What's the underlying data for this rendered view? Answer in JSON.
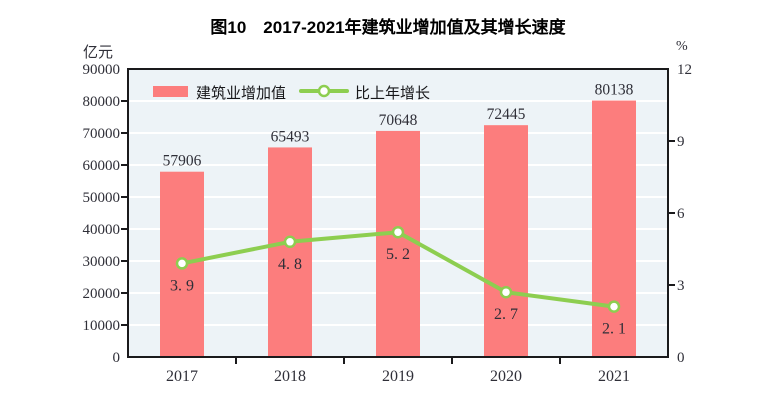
{
  "figure": {
    "title": "图10　2017-2021年建筑业增加值及其增长速度"
  },
  "chart_data": {
    "type": "bar+line",
    "title": "图10　2017-2021年建筑业增加值及其增长速度",
    "categories": [
      "2017",
      "2018",
      "2019",
      "2020",
      "2021"
    ],
    "series": [
      {
        "name": "建筑业增加值",
        "type": "bar",
        "axis": "left",
        "unit": "亿元",
        "values": [
          57906,
          65493,
          70648,
          72445,
          80138
        ],
        "labels": [
          "57906",
          "65493",
          "70648",
          "72445",
          "80138"
        ],
        "color": "#fc7d7d"
      },
      {
        "name": "比上年增长",
        "type": "line",
        "axis": "right",
        "unit": "%",
        "values": [
          3.9,
          4.8,
          5.2,
          2.7,
          2.1
        ],
        "labels": [
          "3. 9",
          "4. 8",
          "5. 2",
          "2. 7",
          "2. 1"
        ],
        "color": "#8dce50",
        "marker": "open-circle"
      }
    ],
    "left_axis": {
      "unit": "亿元",
      "min": 0,
      "max": 90000,
      "tick_step": 10000,
      "ticks": [
        "0",
        "10000",
        "20000",
        "30000",
        "40000",
        "50000",
        "60000",
        "70000",
        "80000",
        "90000"
      ]
    },
    "right_axis": {
      "unit": "%",
      "min": 0,
      "max": 12,
      "tick_step": 3,
      "ticks": [
        "0",
        "3",
        "6",
        "9",
        "12"
      ]
    },
    "legend": {
      "position": "top-left-inside",
      "items": [
        "建筑业增加值",
        "比上年增长"
      ]
    },
    "grid": true,
    "plot_background": "#edf3f7",
    "gridline_color": "#ffffff",
    "axis_color": "#1a1a1c"
  }
}
